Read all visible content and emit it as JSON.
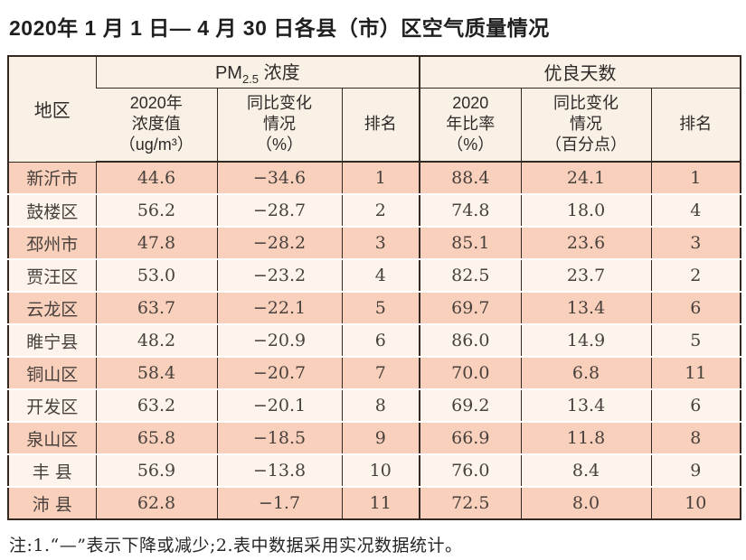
{
  "title": "2020年 1 月 1 日— 4 月 30 日各县（市）区空气质量情况",
  "note": "注:1.“—”表示下降或减少;2.表中数据采用实况数据统计。",
  "colors": {
    "border": "#332822",
    "header_bg": "#f9f0e6",
    "row_odd_bg": "#f9d0bc",
    "row_even_bg": "#fdf4ec"
  },
  "table": {
    "header": {
      "region": "地区",
      "pm_prefix": "PM",
      "pm_sub": "2.5",
      "pm_suffix": " 浓度",
      "good_group": "优良天数",
      "pm_value": "2020年\n浓度值\n（ug/m³）",
      "pm_change": "同比变化\n情况\n（%）",
      "pm_rank": "排名",
      "good_rate": "2020\n年比率\n（%）",
      "good_change": "同比变化\n情况\n（百分点）",
      "good_rank": "排名"
    },
    "rows": [
      {
        "region": "新沂市",
        "pm_value": "44.6",
        "pm_change": "−34.6",
        "pm_rank": "1",
        "good_rate": "88.4",
        "good_change": "24.1",
        "good_rank": "1"
      },
      {
        "region": "鼓楼区",
        "pm_value": "56.2",
        "pm_change": "−28.7",
        "pm_rank": "2",
        "good_rate": "74.8",
        "good_change": "18.0",
        "good_rank": "4"
      },
      {
        "region": "邳州市",
        "pm_value": "47.8",
        "pm_change": "−28.2",
        "pm_rank": "3",
        "good_rate": "85.1",
        "good_change": "23.6",
        "good_rank": "3"
      },
      {
        "region": "贾汪区",
        "pm_value": "53.0",
        "pm_change": "−23.2",
        "pm_rank": "4",
        "good_rate": "82.5",
        "good_change": "23.7",
        "good_rank": "2"
      },
      {
        "region": "云龙区",
        "pm_value": "63.7",
        "pm_change": "−22.1",
        "pm_rank": "5",
        "good_rate": "69.7",
        "good_change": "13.4",
        "good_rank": "6"
      },
      {
        "region": "睢宁县",
        "pm_value": "48.2",
        "pm_change": "−20.9",
        "pm_rank": "6",
        "good_rate": "86.0",
        "good_change": "14.9",
        "good_rank": "5"
      },
      {
        "region": "铜山区",
        "pm_value": "58.4",
        "pm_change": "−20.7",
        "pm_rank": "7",
        "good_rate": "70.0",
        "good_change": "6.8",
        "good_rank": "11"
      },
      {
        "region": "开发区",
        "pm_value": "63.2",
        "pm_change": "−20.1",
        "pm_rank": "8",
        "good_rate": "69.2",
        "good_change": "13.4",
        "good_rank": "6"
      },
      {
        "region": "泉山区",
        "pm_value": "65.8",
        "pm_change": "−18.5",
        "pm_rank": "9",
        "good_rate": "66.9",
        "good_change": "11.8",
        "good_rank": "8"
      },
      {
        "region": "丰 县",
        "pm_value": "56.9",
        "pm_change": "−13.8",
        "pm_rank": "10",
        "good_rate": "76.0",
        "good_change": "8.4",
        "good_rank": "9"
      },
      {
        "region": "沛 县",
        "pm_value": "62.8",
        "pm_change": "−1.7",
        "pm_rank": "11",
        "good_rate": "72.5",
        "good_change": "8.0",
        "good_rank": "10"
      }
    ]
  }
}
